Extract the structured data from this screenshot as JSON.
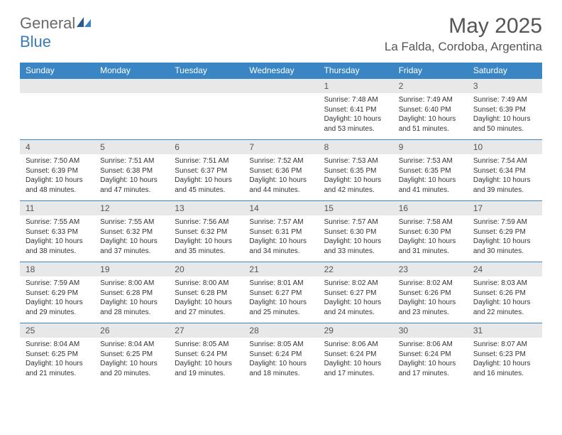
{
  "logo": {
    "text1": "General",
    "text2": "Blue"
  },
  "title": "May 2025",
  "location": "La Falda, Cordoba, Argentina",
  "colors": {
    "header_bg": "#3a86c4",
    "header_text": "#ffffff",
    "date_bg": "#e8e8e8",
    "border": "#3a86c4",
    "text": "#333333",
    "title_text": "#555555"
  },
  "day_names": [
    "Sunday",
    "Monday",
    "Tuesday",
    "Wednesday",
    "Thursday",
    "Friday",
    "Saturday"
  ],
  "weeks": [
    [
      null,
      null,
      null,
      null,
      {
        "d": "1",
        "sr": "7:48 AM",
        "ss": "6:41 PM",
        "dl": "10 hours and 53 minutes."
      },
      {
        "d": "2",
        "sr": "7:49 AM",
        "ss": "6:40 PM",
        "dl": "10 hours and 51 minutes."
      },
      {
        "d": "3",
        "sr": "7:49 AM",
        "ss": "6:39 PM",
        "dl": "10 hours and 50 minutes."
      }
    ],
    [
      {
        "d": "4",
        "sr": "7:50 AM",
        "ss": "6:39 PM",
        "dl": "10 hours and 48 minutes."
      },
      {
        "d": "5",
        "sr": "7:51 AM",
        "ss": "6:38 PM",
        "dl": "10 hours and 47 minutes."
      },
      {
        "d": "6",
        "sr": "7:51 AM",
        "ss": "6:37 PM",
        "dl": "10 hours and 45 minutes."
      },
      {
        "d": "7",
        "sr": "7:52 AM",
        "ss": "6:36 PM",
        "dl": "10 hours and 44 minutes."
      },
      {
        "d": "8",
        "sr": "7:53 AM",
        "ss": "6:35 PM",
        "dl": "10 hours and 42 minutes."
      },
      {
        "d": "9",
        "sr": "7:53 AM",
        "ss": "6:35 PM",
        "dl": "10 hours and 41 minutes."
      },
      {
        "d": "10",
        "sr": "7:54 AM",
        "ss": "6:34 PM",
        "dl": "10 hours and 39 minutes."
      }
    ],
    [
      {
        "d": "11",
        "sr": "7:55 AM",
        "ss": "6:33 PM",
        "dl": "10 hours and 38 minutes."
      },
      {
        "d": "12",
        "sr": "7:55 AM",
        "ss": "6:32 PM",
        "dl": "10 hours and 37 minutes."
      },
      {
        "d": "13",
        "sr": "7:56 AM",
        "ss": "6:32 PM",
        "dl": "10 hours and 35 minutes."
      },
      {
        "d": "14",
        "sr": "7:57 AM",
        "ss": "6:31 PM",
        "dl": "10 hours and 34 minutes."
      },
      {
        "d": "15",
        "sr": "7:57 AM",
        "ss": "6:30 PM",
        "dl": "10 hours and 33 minutes."
      },
      {
        "d": "16",
        "sr": "7:58 AM",
        "ss": "6:30 PM",
        "dl": "10 hours and 31 minutes."
      },
      {
        "d": "17",
        "sr": "7:59 AM",
        "ss": "6:29 PM",
        "dl": "10 hours and 30 minutes."
      }
    ],
    [
      {
        "d": "18",
        "sr": "7:59 AM",
        "ss": "6:29 PM",
        "dl": "10 hours and 29 minutes."
      },
      {
        "d": "19",
        "sr": "8:00 AM",
        "ss": "6:28 PM",
        "dl": "10 hours and 28 minutes."
      },
      {
        "d": "20",
        "sr": "8:00 AM",
        "ss": "6:28 PM",
        "dl": "10 hours and 27 minutes."
      },
      {
        "d": "21",
        "sr": "8:01 AM",
        "ss": "6:27 PM",
        "dl": "10 hours and 25 minutes."
      },
      {
        "d": "22",
        "sr": "8:02 AM",
        "ss": "6:27 PM",
        "dl": "10 hours and 24 minutes."
      },
      {
        "d": "23",
        "sr": "8:02 AM",
        "ss": "6:26 PM",
        "dl": "10 hours and 23 minutes."
      },
      {
        "d": "24",
        "sr": "8:03 AM",
        "ss": "6:26 PM",
        "dl": "10 hours and 22 minutes."
      }
    ],
    [
      {
        "d": "25",
        "sr": "8:04 AM",
        "ss": "6:25 PM",
        "dl": "10 hours and 21 minutes."
      },
      {
        "d": "26",
        "sr": "8:04 AM",
        "ss": "6:25 PM",
        "dl": "10 hours and 20 minutes."
      },
      {
        "d": "27",
        "sr": "8:05 AM",
        "ss": "6:24 PM",
        "dl": "10 hours and 19 minutes."
      },
      {
        "d": "28",
        "sr": "8:05 AM",
        "ss": "6:24 PM",
        "dl": "10 hours and 18 minutes."
      },
      {
        "d": "29",
        "sr": "8:06 AM",
        "ss": "6:24 PM",
        "dl": "10 hours and 17 minutes."
      },
      {
        "d": "30",
        "sr": "8:06 AM",
        "ss": "6:24 PM",
        "dl": "10 hours and 17 minutes."
      },
      {
        "d": "31",
        "sr": "8:07 AM",
        "ss": "6:23 PM",
        "dl": "10 hours and 16 minutes."
      }
    ]
  ],
  "labels": {
    "sunrise": "Sunrise:",
    "sunset": "Sunset:",
    "daylight": "Daylight:"
  }
}
